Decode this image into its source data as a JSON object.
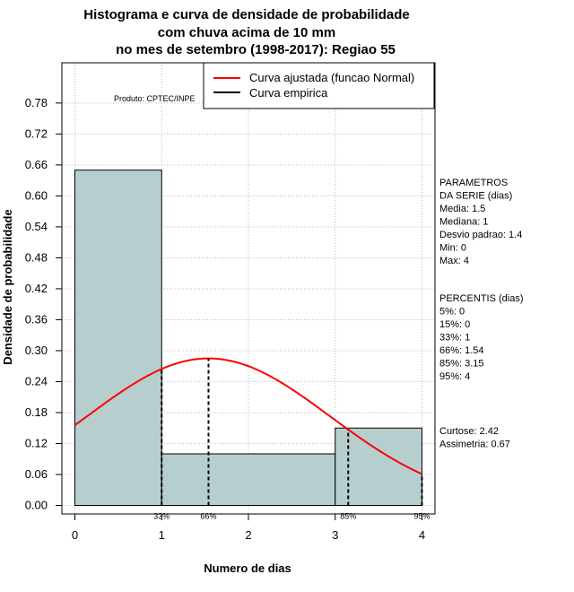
{
  "chart_data": {
    "type": "histogram",
    "title": [
      "Histograma e curva de densidade de probabilidade",
      "com chuva acima de 10 mm",
      "no mes de setembro (1998-2017): Regiao 55"
    ],
    "xlabel": "Numero de dias",
    "ylabel": "Densidade de probabilidade",
    "xlim": [
      -0.15,
      4.15
    ],
    "ylim": [
      -0.0165,
      0.858
    ],
    "x_ticks": [
      0,
      1,
      2,
      3,
      4
    ],
    "y_ticks": [
      0.0,
      0.06,
      0.12,
      0.18,
      0.24,
      0.3,
      0.36,
      0.42,
      0.48,
      0.54,
      0.6,
      0.66,
      0.72,
      0.78
    ],
    "y_tick_labels": [
      "0.00",
      "0.06",
      "0.12",
      "0.18",
      "0.24",
      "0.30",
      "0.36",
      "0.42",
      "0.48",
      "0.54",
      "0.60",
      "0.66",
      "0.72",
      "0.78"
    ],
    "bins": [
      {
        "x0": 0,
        "x1": 1,
        "density": 0.65
      },
      {
        "x0": 1,
        "x1": 3,
        "density": 0.1
      },
      {
        "x0": 3,
        "x1": 4,
        "density": 0.15
      }
    ],
    "grid": true,
    "fitted_curve": {
      "name": "Curva ajustada (funcao Normal)",
      "distribution": "normal",
      "mean": 1.54,
      "sd": 1.4,
      "color": "#ff0000"
    },
    "percentile_markers": [
      {
        "label": "33%",
        "x": 1
      },
      {
        "label": "66%",
        "x": 1.54
      },
      {
        "label": "85%",
        "x": 3.15
      },
      {
        "label": "95%",
        "x": 4
      }
    ],
    "legend": {
      "position": "top-right",
      "entries": [
        {
          "label": "Curva ajustada (funcao Normal)",
          "color": "#ff0000"
        },
        {
          "label": "Curva empirica",
          "color": "#000000"
        }
      ]
    },
    "credit": "Produto: CPTEC/INPE",
    "colors": {
      "bar_fill": "#b6cece",
      "curve": "#ff0000",
      "grid": "#bebebe"
    }
  },
  "side_panel": {
    "parametros": [
      "PARAMETROS",
      "DA SERIE (dias)",
      "  Media: 1.5",
      "  Mediana: 1",
      "  Desvio padrao: 1.4",
      "  Min: 0",
      "  Max: 4"
    ],
    "percentis": [
      "PERCENTIS (dias)",
      "  5%: 0",
      "  15%: 0",
      "  33%: 1",
      "  66%: 1.54",
      "  85%: 3.15",
      "  95%: 4"
    ],
    "shape": [
      "Curtose: 2.42",
      "Assimetria: 0.67"
    ]
  }
}
